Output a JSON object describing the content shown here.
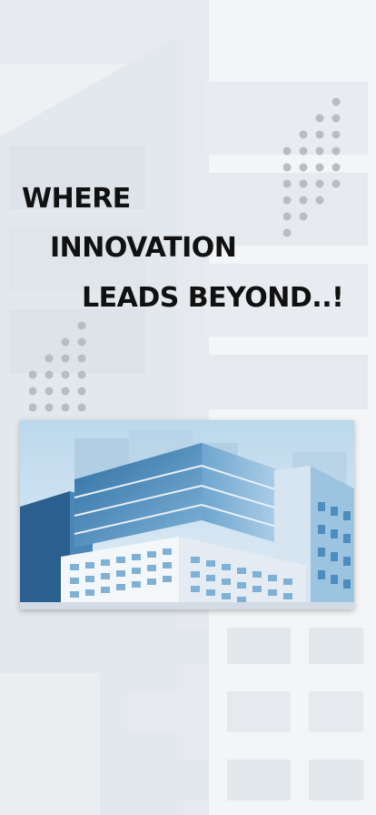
{
  "headline": {
    "line1": "WHERE",
    "line2": "INNOVATION",
    "line3": "LEADS BEYOND..!"
  },
  "icons": {
    "background": "building-background-graphic",
    "dot_grid_top": "dot-pattern-icon",
    "dot_grid_left": "dot-pattern-icon",
    "hero": "office-building-illustration"
  },
  "colors": {
    "text": "#111111",
    "dots": "#b8bdc2",
    "sky": "#cfe3f1",
    "glass": "#3f80b3"
  }
}
